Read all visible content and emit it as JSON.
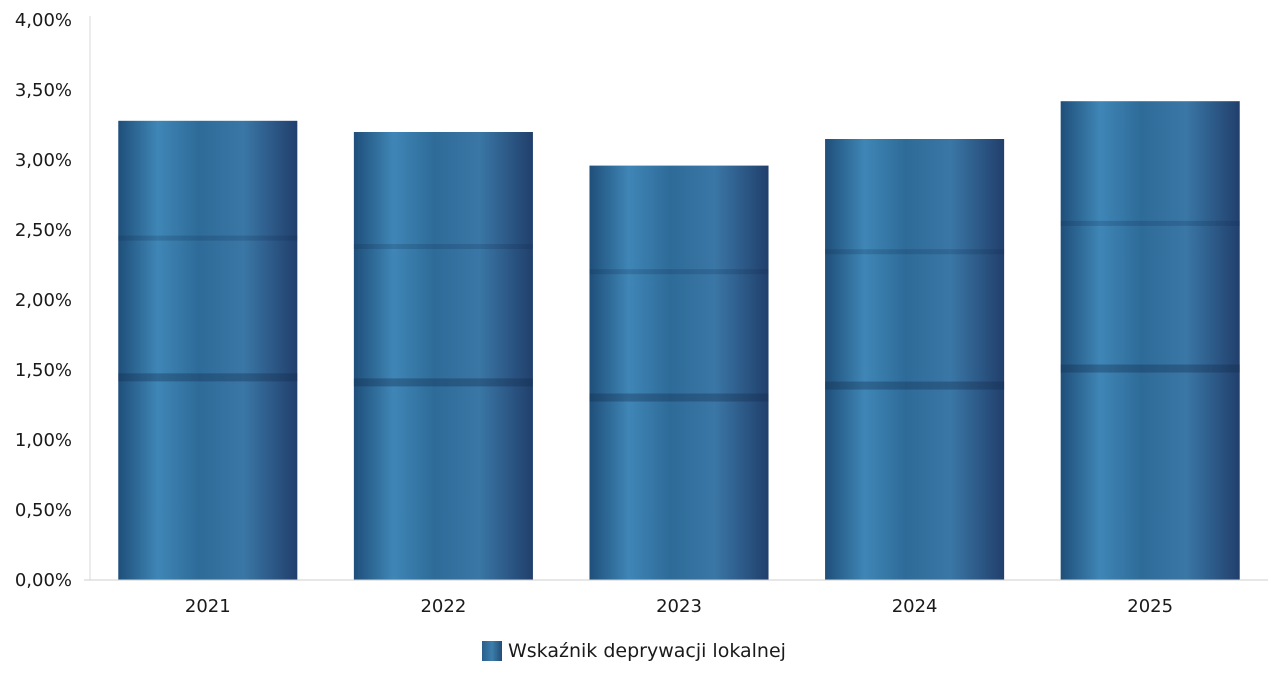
{
  "chart_data": {
    "type": "bar",
    "categories": [
      "2021",
      "2022",
      "2023",
      "2024",
      "2025"
    ],
    "series": [
      {
        "name": "Wskaźnik deprywacji lokalnej",
        "values": [
          3.28,
          3.2,
          2.96,
          3.15,
          3.42
        ]
      }
    ],
    "y_ticks": [
      "0,00%",
      "0,50%",
      "1,00%",
      "1,50%",
      "2,00%",
      "2,50%",
      "3,00%",
      "3,50%",
      "4,00%"
    ],
    "ylim": [
      0,
      4
    ],
    "grid": false,
    "legend_position": "bottom-center",
    "bar_color": "#2f6a97"
  }
}
